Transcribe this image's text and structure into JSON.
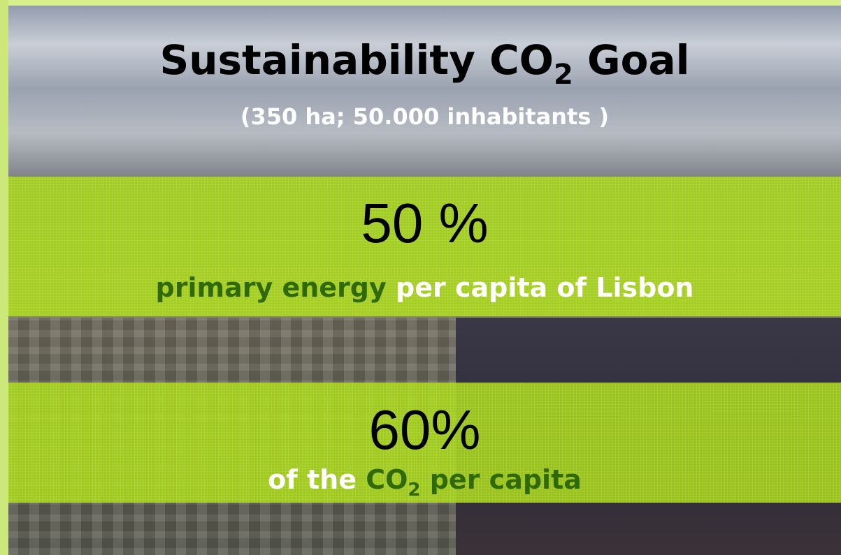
{
  "slide": {
    "title": {
      "before": "Sustainability CO",
      "subscript": "2",
      "after": "Goal"
    },
    "subtitle": "(350 ha; 50.000 inhabitants )",
    "goals": [
      {
        "figure": "50 %",
        "label": {
          "highlight": "primary energy",
          "rest": "per capita of Lisbon"
        }
      },
      {
        "figure": "60%",
        "label": {
          "lead": "of the",
          "highlight": "CO",
          "subscript": "2",
          "rest": "per capita"
        }
      }
    ]
  }
}
